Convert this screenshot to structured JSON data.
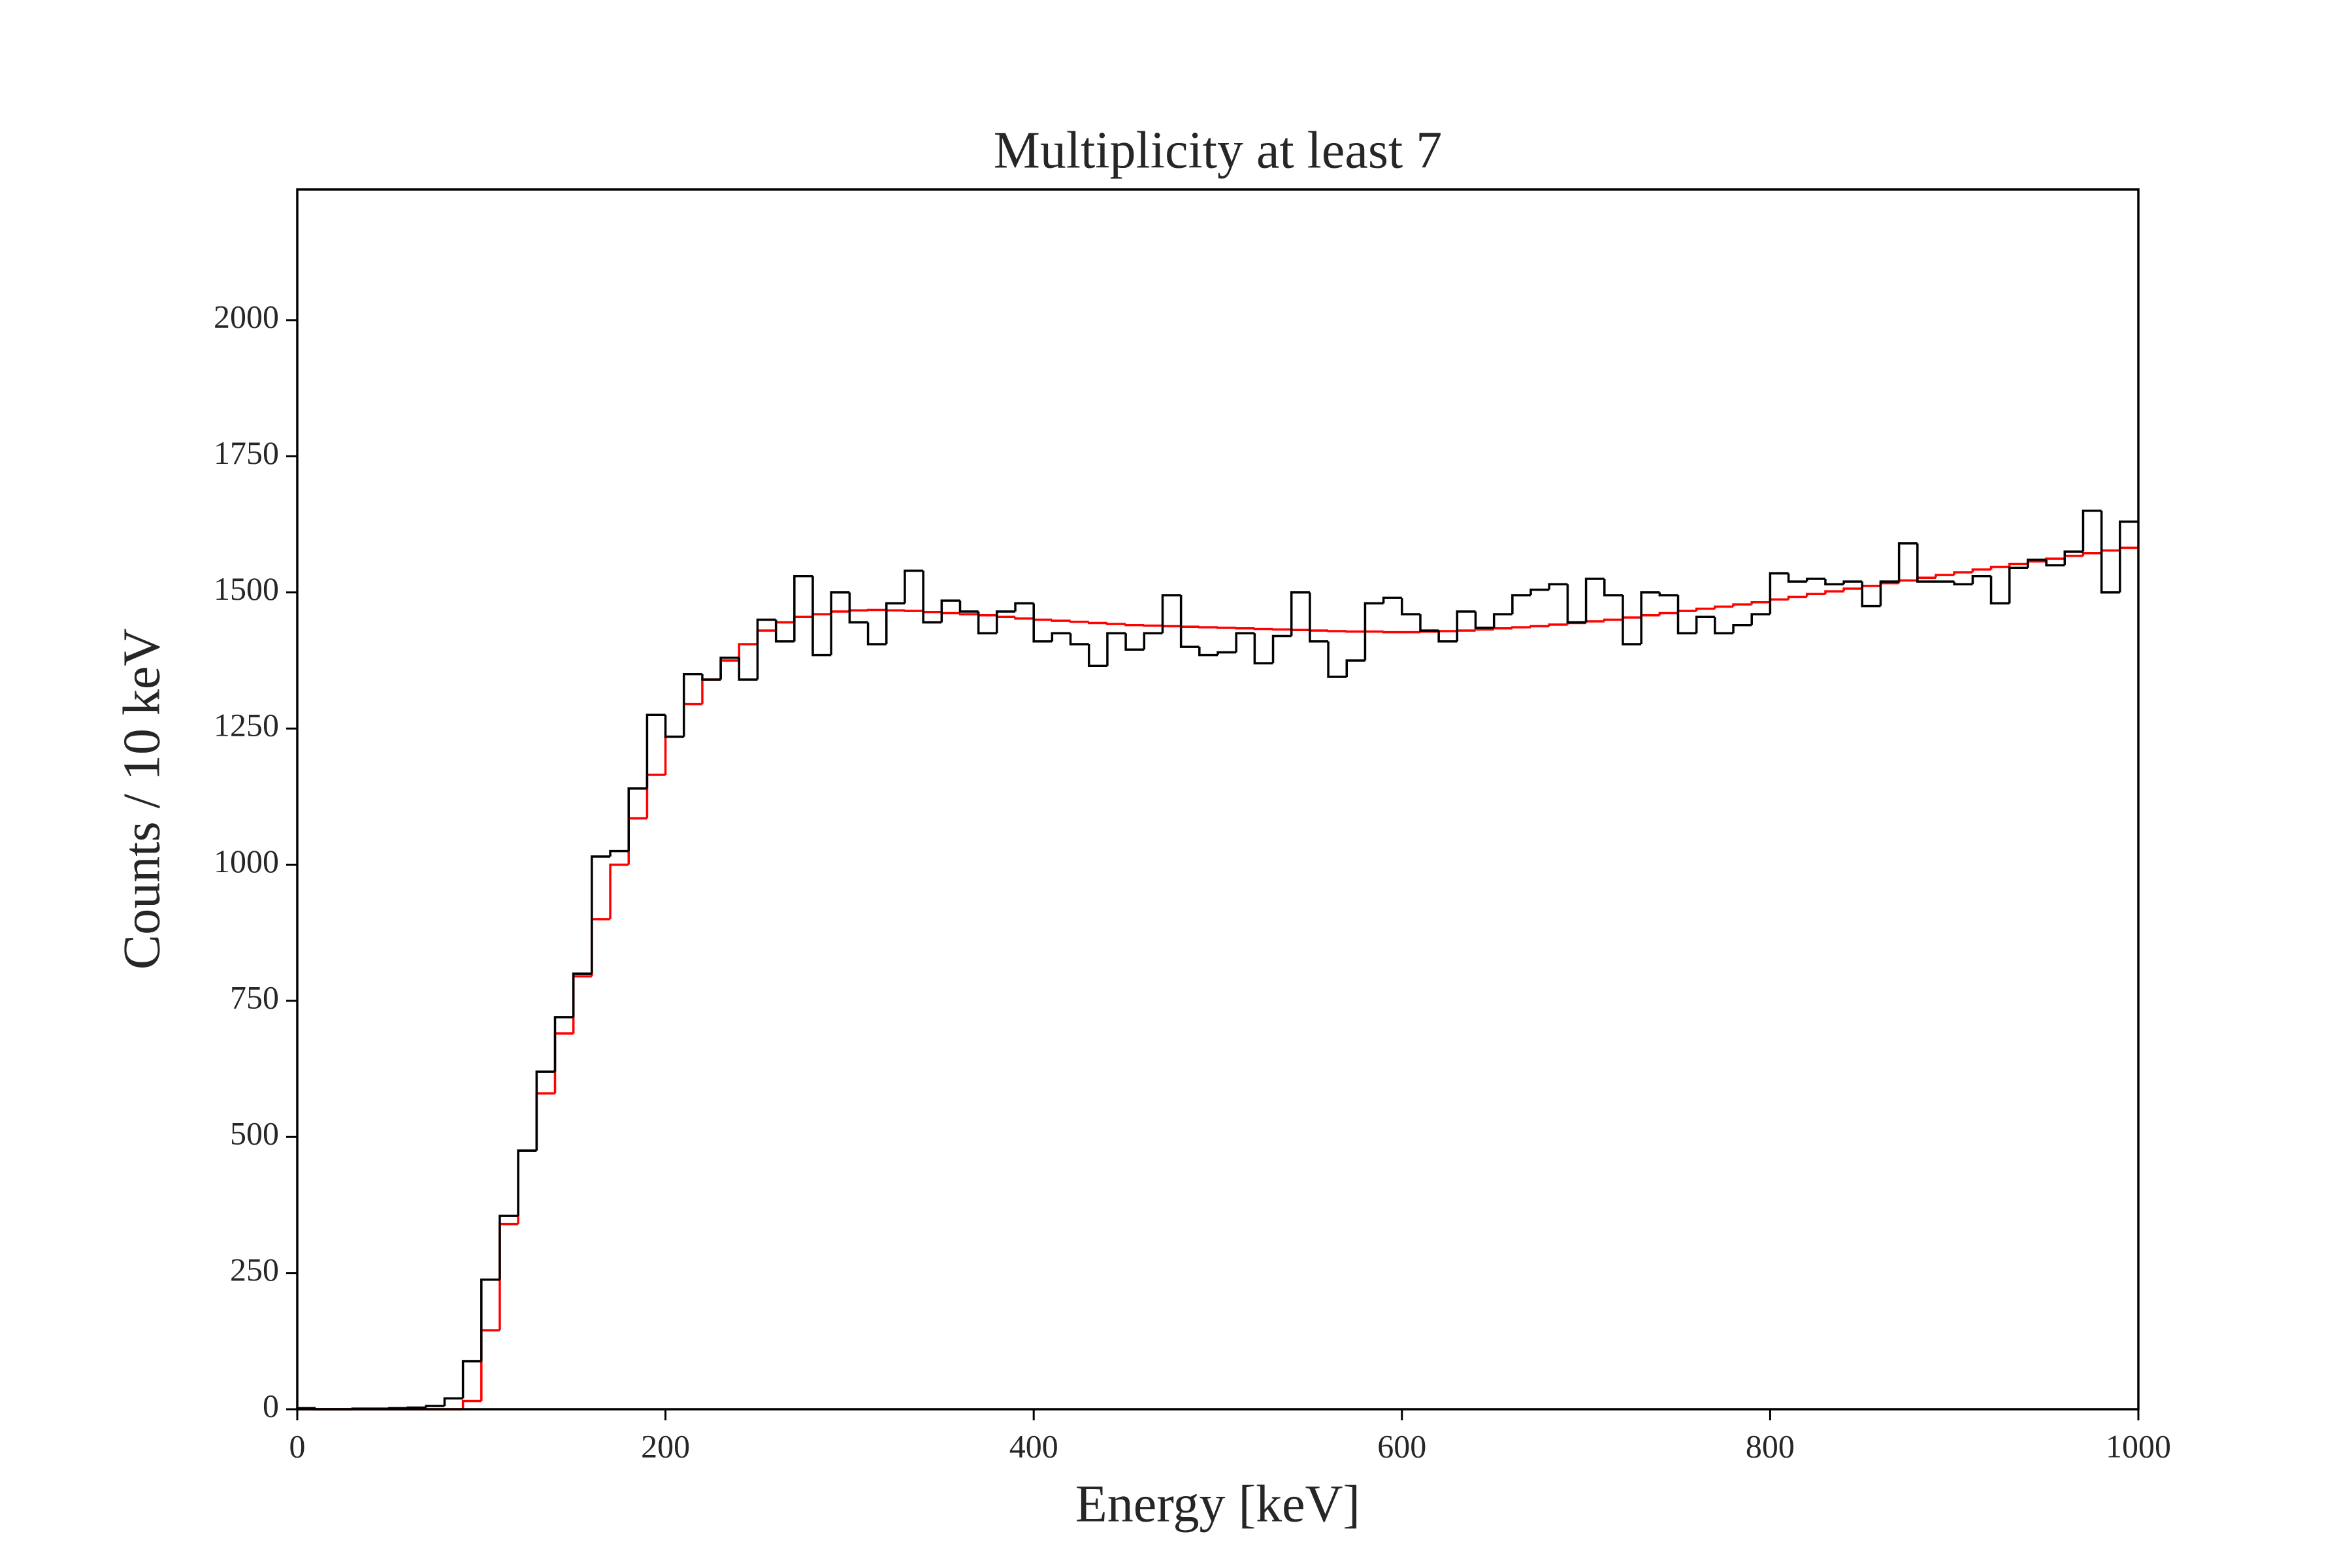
{
  "chart_data": {
    "type": "histogram",
    "title": "Multiplicity at least 7",
    "xlabel": "Energy [keV]",
    "ylabel": "Counts / 10 keV",
    "bins": [
      0,
      10,
      20,
      30,
      40,
      50,
      60,
      70,
      80,
      90,
      100,
      110,
      120,
      130,
      140,
      150,
      160,
      170,
      180,
      190,
      200,
      210,
      220,
      230,
      240,
      250,
      260,
      270,
      280,
      290,
      300,
      310,
      320,
      330,
      340,
      350,
      360,
      370,
      380,
      390,
      400,
      410,
      420,
      430,
      440,
      450,
      460,
      470,
      480,
      490,
      500,
      510,
      520,
      530,
      540,
      550,
      560,
      570,
      580,
      590,
      600,
      610,
      620,
      630,
      640,
      650,
      660,
      670,
      680,
      690,
      700,
      710,
      720,
      730,
      740,
      750,
      760,
      770,
      780,
      790,
      800,
      810,
      820,
      830,
      840,
      850,
      860,
      870,
      880,
      890,
      900,
      910,
      920,
      930,
      940,
      950,
      960,
      970,
      980,
      990,
      1000
    ],
    "series": [
      {
        "color": "#000000",
        "values": [
          2,
          0,
          0,
          1,
          1,
          2,
          3,
          6,
          20,
          88,
          238,
          355,
          475,
          620,
          720,
          800,
          1015,
          1025,
          1140,
          1275,
          1235,
          1350,
          1340,
          1380,
          1340,
          1450,
          1410,
          1530,
          1385,
          1500,
          1445,
          1405,
          1480,
          1540,
          1445,
          1485,
          1465,
          1425,
          1465,
          1480,
          1410,
          1425,
          1405,
          1365,
          1425,
          1395,
          1425,
          1495,
          1400,
          1385,
          1390,
          1425,
          1370,
          1420,
          1500,
          1410,
          1345,
          1375,
          1480,
          1490,
          1460,
          1430,
          1410,
          1465,
          1435,
          1460,
          1495,
          1505,
          1515,
          1445,
          1525,
          1495,
          1405,
          1500,
          1495,
          1425,
          1455,
          1425,
          1440,
          1460,
          1535,
          1520,
          1525,
          1515,
          1520,
          1475,
          1520,
          1590,
          1520,
          1520,
          1515,
          1530,
          1480,
          1545,
          1560,
          1550,
          1575,
          1650,
          1500,
          1630
        ]
      },
      {
        "color": "#ff0000",
        "values": [
          0,
          0,
          0,
          0,
          0,
          0,
          0,
          0,
          0,
          15,
          145,
          340,
          475,
          580,
          690,
          795,
          900,
          1000,
          1085,
          1165,
          1235,
          1295,
          1340,
          1375,
          1405,
          1430,
          1445,
          1455,
          1460,
          1465,
          1467,
          1468,
          1467,
          1466,
          1464,
          1462,
          1460,
          1458,
          1455,
          1452,
          1450,
          1448,
          1446,
          1444,
          1442,
          1440,
          1439,
          1438,
          1437,
          1436,
          1435,
          1434,
          1433,
          1432,
          1431,
          1430,
          1429,
          1428,
          1428,
          1427,
          1427,
          1428,
          1429,
          1430,
          1432,
          1434,
          1436,
          1438,
          1441,
          1444,
          1447,
          1450,
          1454,
          1458,
          1462,
          1466,
          1470,
          1474,
          1478,
          1482,
          1487,
          1492,
          1497,
          1502,
          1507,
          1512,
          1517,
          1522,
          1527,
          1532,
          1537,
          1542,
          1547,
          1552,
          1557,
          1562,
          1567,
          1572,
          1577,
          1582
        ]
      }
    ],
    "xlim": [
      0,
      1000
    ],
    "ylim": [
      0,
      2240
    ],
    "xticks": [
      0,
      200,
      400,
      600,
      800,
      1000
    ],
    "yticks": [
      0,
      250,
      500,
      750,
      1000,
      1250,
      1500,
      1750,
      2000
    ]
  }
}
